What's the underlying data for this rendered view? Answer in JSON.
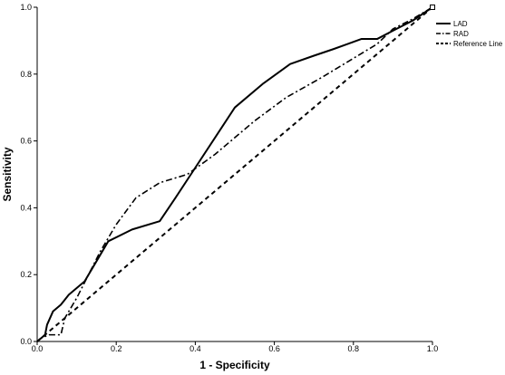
{
  "chart_data": {
    "type": "line",
    "title": "",
    "xlabel": "1 - Specificity",
    "ylabel": "Sensitivity",
    "xlim": [
      0,
      1
    ],
    "ylim": [
      0,
      1
    ],
    "x_ticks": [
      "0.0",
      "0.2",
      "0.4",
      "0.6",
      "0.8",
      "1.0"
    ],
    "y_ticks": [
      "0.0",
      "0.2",
      "0.4",
      "0.6",
      "0.8",
      "1.0"
    ],
    "grid": false,
    "legend_position": "top-right",
    "series": [
      {
        "name": "LAD",
        "style": "solid",
        "color": "#000000",
        "x": [
          0,
          0.02,
          0.025,
          0.04,
          0.06,
          0.08,
          0.12,
          0.14,
          0.16,
          0.18,
          0.24,
          0.31,
          0.35,
          0.4,
          0.45,
          0.5,
          0.57,
          0.64,
          0.7,
          0.75,
          0.82,
          0.86,
          0.9,
          0.95,
          1.0
        ],
        "y": [
          0,
          0.02,
          0.05,
          0.09,
          0.11,
          0.14,
          0.18,
          0.22,
          0.26,
          0.3,
          0.335,
          0.36,
          0.43,
          0.52,
          0.61,
          0.7,
          0.77,
          0.83,
          0.855,
          0.875,
          0.905,
          0.905,
          0.93,
          0.96,
          1.0
        ]
      },
      {
        "name": "RAD",
        "style": "dash-dot",
        "color": "#000000",
        "x": [
          0,
          0.01,
          0.03,
          0.06,
          0.07,
          0.1,
          0.13,
          0.16,
          0.2,
          0.25,
          0.31,
          0.38,
          0.45,
          0.55,
          0.63,
          0.72,
          0.79,
          0.86,
          0.9,
          0.95,
          1.0
        ],
        "y": [
          0,
          0.01,
          0.02,
          0.02,
          0.07,
          0.13,
          0.2,
          0.27,
          0.35,
          0.43,
          0.475,
          0.5,
          0.56,
          0.66,
          0.73,
          0.79,
          0.84,
          0.89,
          0.935,
          0.965,
          1.0
        ]
      },
      {
        "name": "Reference Line",
        "style": "dashed",
        "color": "#000000",
        "x": [
          0,
          1
        ],
        "y": [
          0,
          1
        ]
      }
    ]
  }
}
